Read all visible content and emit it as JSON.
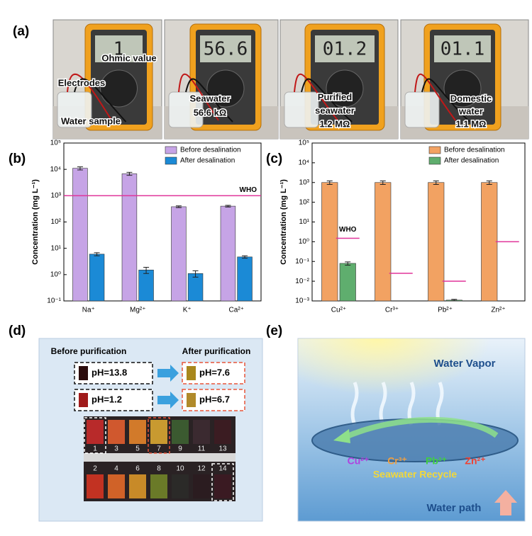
{
  "panel_labels": [
    "(a)",
    "(b)",
    "(c)",
    "(d)",
    "(e)"
  ],
  "photos": [
    {
      "display": "1",
      "labels": [
        "Ohmic value",
        "Electrodes",
        "Water sample"
      ]
    },
    {
      "display": "56.6",
      "labels": [
        "Seawater",
        "56.6 kΩ"
      ]
    },
    {
      "display": "01.2",
      "labels": [
        "Purified",
        "seawater",
        "1.2 MΩ"
      ]
    },
    {
      "display": "01.1",
      "labels": [
        "Domestic",
        "water",
        "1.1 MΩ"
      ]
    }
  ],
  "chart_data": [
    {
      "type": "bar",
      "log_y": true,
      "ylabel": "Concentration (mg L⁻¹)",
      "categories": [
        "Na⁺",
        "Mg²⁺",
        "K⁺",
        "Ca²⁺"
      ],
      "series": [
        {
          "name": "Before desalination",
          "color": "#c6a4e6",
          "values": [
            11000,
            6800,
            380,
            400
          ],
          "errors": [
            1500,
            900,
            30,
            30
          ]
        },
        {
          "name": "After desalination",
          "color": "#1b8ad6",
          "values": [
            6,
            1.5,
            1.1,
            4.7
          ],
          "errors": [
            0.8,
            0.4,
            0.3,
            0.5
          ]
        }
      ],
      "ylim": [
        0.1,
        100000
      ],
      "yticks": [
        {
          "value": 0.1,
          "label": "10⁻¹"
        },
        {
          "value": 1,
          "label": "10⁰"
        },
        {
          "value": 10,
          "label": "10¹"
        },
        {
          "value": 100,
          "label": "10²"
        },
        {
          "value": 1000,
          "label": "10³"
        },
        {
          "value": 10000,
          "label": "10⁴"
        },
        {
          "value": 100000,
          "label": "10⁵"
        }
      ],
      "reference": {
        "label": "WHO",
        "value": 1000,
        "color": "#e0359a"
      },
      "legend": "upper right"
    },
    {
      "type": "bar",
      "log_y": true,
      "ylabel": "Concentration (mg L⁻¹)",
      "categories": [
        "Cu²⁺",
        "Cr³⁺",
        "Pb²⁺",
        "Zn²⁺"
      ],
      "series": [
        {
          "name": "Before desalination",
          "color": "#f2a262",
          "values": [
            1000,
            1000,
            1000,
            1000
          ],
          "errors": [
            200,
            200,
            200,
            200
          ]
        },
        {
          "name": "After desalination",
          "color": "#5fae6e",
          "values": [
            0.08,
            null,
            0.0011,
            null
          ],
          "errors": [
            0.015,
            null,
            0.0001,
            null
          ]
        }
      ],
      "ylim": [
        0.001,
        100000
      ],
      "yticks": [
        {
          "value": 0.001,
          "label": "10⁻³"
        },
        {
          "value": 0.01,
          "label": "10⁻²"
        },
        {
          "value": 0.1,
          "label": "10⁻¹"
        },
        {
          "value": 1,
          "label": "10⁰"
        },
        {
          "value": 10,
          "label": "10¹"
        },
        {
          "value": 100,
          "label": "10²"
        },
        {
          "value": 1000,
          "label": "10³"
        },
        {
          "value": 10000,
          "label": "10⁴"
        },
        {
          "value": 100000,
          "label": "10⁵"
        }
      ],
      "reference_marks": {
        "label": "WHO",
        "values": [
          1.5,
          0.025,
          0.01,
          1.0
        ],
        "color": "#e0359a"
      },
      "legend": "upper right"
    }
  ],
  "ph_panel": {
    "before": "Before purification",
    "after": "After purification",
    "pairs": [
      [
        "pH=13.8",
        "pH=7.6"
      ],
      [
        "pH=1.2",
        "pH=6.7"
      ]
    ],
    "scale_top": [
      "1",
      "3",
      "5",
      "7",
      "9",
      "11",
      "13"
    ],
    "scale_bottom": [
      "2",
      "4",
      "6",
      "8",
      "10",
      "12",
      "14"
    ]
  },
  "schematic": {
    "top": "Water Vapor",
    "ions": [
      "Cu²⁺",
      "Cr³⁺",
      "Pb²⁺",
      "Zn²⁺"
    ],
    "recycle": "Seawater Recycle",
    "bottom": "Water path"
  }
}
